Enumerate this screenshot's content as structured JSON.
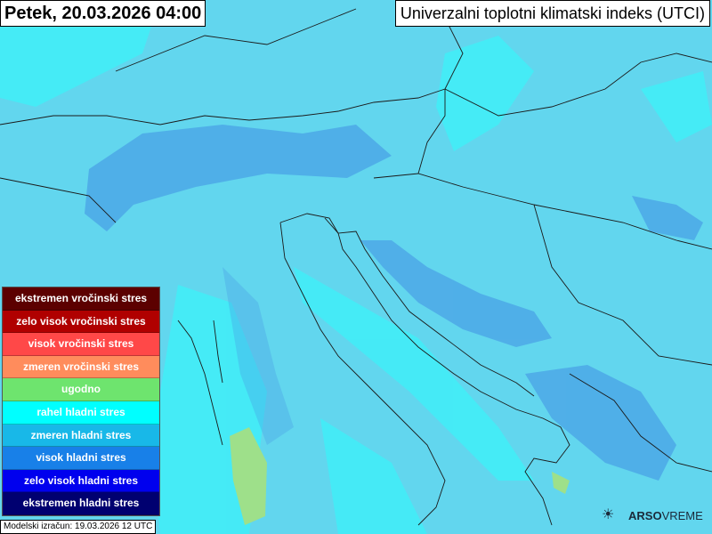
{
  "header": {
    "date": "Petek, 20.03.2026 04:00",
    "title": "Univerzalni toplotni klimatski indeks (UTCI)"
  },
  "legend": [
    {
      "label": "ekstremen vročinski stres",
      "color": "#5c0000"
    },
    {
      "label": "zelo visok vročinski stres",
      "color": "#b00000"
    },
    {
      "label": "visok vročinski stres",
      "color": "#ff4848"
    },
    {
      "label": "zmeren vročinski stres",
      "color": "#ff8c5c"
    },
    {
      "label": "ugodno",
      "color": "#6ee46e"
    },
    {
      "label": "rahel hladni stres",
      "color": "#00ffff"
    },
    {
      "label": "zmeren hladni stres",
      "color": "#18b8e8"
    },
    {
      "label": "visok hladni stres",
      "color": "#1880e8"
    },
    {
      "label": "zelo visok hladni stres",
      "color": "#0000ee"
    },
    {
      "label": "ekstremen hladni stres",
      "color": "#000070"
    }
  ],
  "footer": {
    "model_run": "Modelski izračun: 19.03.2026 12 UTC",
    "logo_bold": "ARSO",
    "logo_light": "VREME"
  },
  "map_colors": {
    "base": "#62d6ee",
    "light": "#3ef0f8",
    "blue": "#4aa2e6",
    "comfort": "#9ee08a"
  }
}
